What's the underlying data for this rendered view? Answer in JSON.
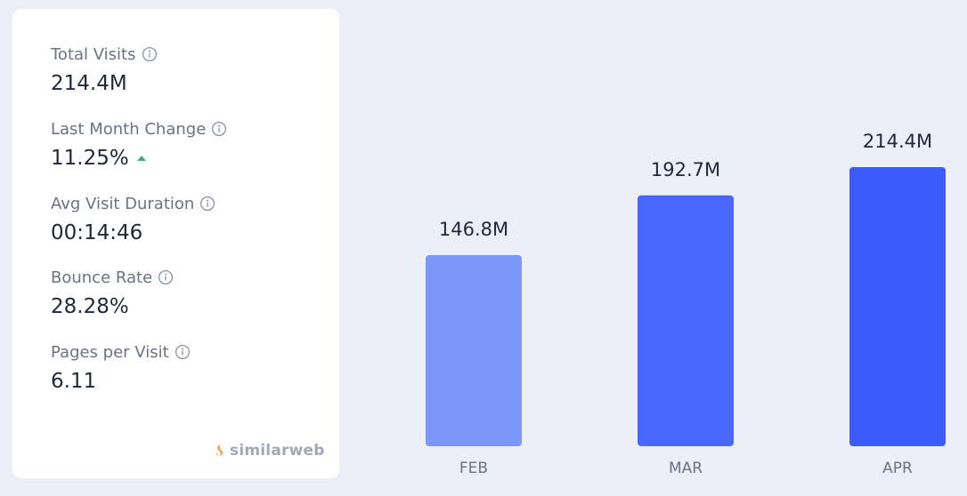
{
  "metrics": [
    {
      "label": "Total Visits",
      "value": "214.4M"
    },
    {
      "label": "Last Month Change",
      "value": "11.25%",
      "trend": "up"
    },
    {
      "label": "Avg Visit Duration",
      "value": "00:14:46"
    },
    {
      "label": "Bounce Rate",
      "value": "28.28%"
    },
    {
      "label": "Pages per Visit",
      "value": "6.11"
    }
  ],
  "brand": {
    "name": "similarweb",
    "icon": "similarweb-logo-icon"
  },
  "icons": {
    "info": "info-icon",
    "trend_up": "triangle-up-icon"
  },
  "colors": {
    "background": "#eceff8",
    "card": "#ffffff",
    "trend_up": "#3ab37a",
    "label_text": "#6b7280",
    "value_text": "#1f2937"
  },
  "chart_data": {
    "type": "bar",
    "categories": [
      "FEB",
      "MAR",
      "APR"
    ],
    "values": [
      146.8,
      192.7,
      214.4
    ],
    "data_labels": [
      "146.8M",
      "192.7M",
      "214.4M"
    ],
    "unit": "M",
    "colors": [
      "#7d96f9",
      "#4a67fb",
      "#3b5bfc"
    ],
    "ylim": [
      0,
      214.4
    ],
    "grid": false,
    "title": "",
    "xlabel": "",
    "ylabel": ""
  }
}
